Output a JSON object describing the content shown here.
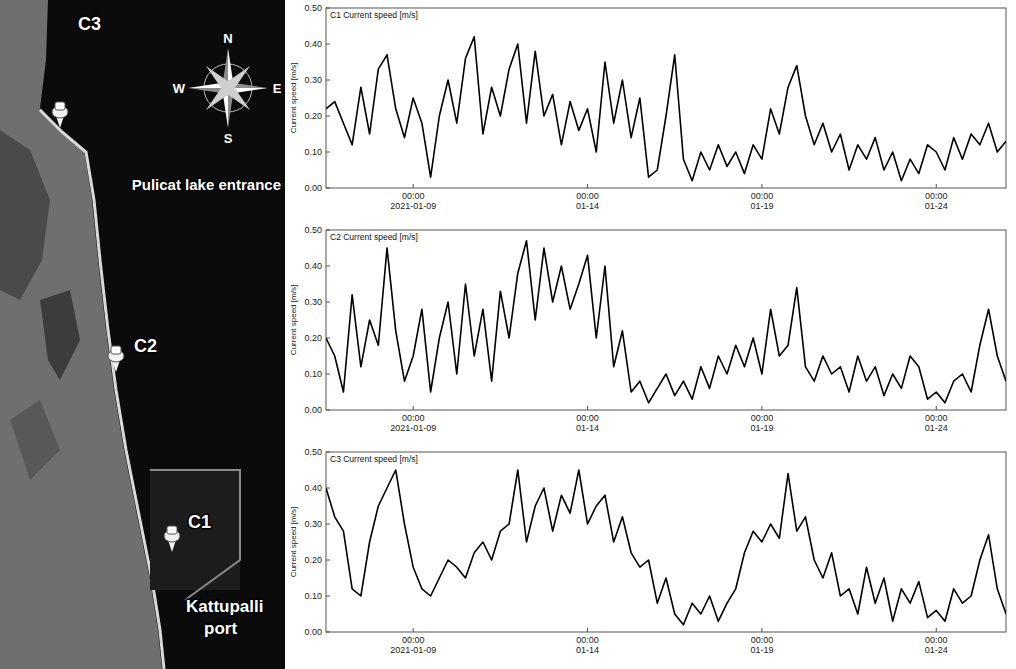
{
  "map": {
    "points": [
      {
        "label": "C3"
      },
      {
        "label": "C2"
      },
      {
        "label": "C1"
      }
    ],
    "places": [
      "Pulicat lake entrance",
      "Kattupalli port"
    ],
    "compass": [
      "N",
      "E",
      "S",
      "W"
    ]
  },
  "chart_data": [
    {
      "type": "line",
      "title": "C1 Current speed [m/s]",
      "ylabel": "Current speed [m/s]",
      "grid": false,
      "x": [
        "2021-01-06T12:00",
        "2021-01-06T18:00",
        "2021-01-07T00:00",
        "2021-01-07T06:00",
        "2021-01-07T12:00",
        "2021-01-07T18:00",
        "2021-01-08T00:00",
        "2021-01-08T06:00",
        "2021-01-08T12:00",
        "2021-01-08T18:00",
        "2021-01-09T00:00",
        "2021-01-09T06:00",
        "2021-01-09T12:00",
        "2021-01-09T18:00",
        "2021-01-10T00:00",
        "2021-01-10T06:00",
        "2021-01-10T12:00",
        "2021-01-10T18:00",
        "2021-01-11T00:00",
        "2021-01-11T06:00",
        "2021-01-11T12:00",
        "2021-01-11T18:00",
        "2021-01-12T00:00",
        "2021-01-12T06:00",
        "2021-01-12T12:00",
        "2021-01-12T18:00",
        "2021-01-13T00:00",
        "2021-01-13T06:00",
        "2021-01-13T12:00",
        "2021-01-13T18:00",
        "2021-01-14T00:00",
        "2021-01-14T06:00",
        "2021-01-14T12:00",
        "2021-01-14T18:00",
        "2021-01-15T00:00",
        "2021-01-15T06:00",
        "2021-01-15T12:00",
        "2021-01-15T18:00",
        "2021-01-16T00:00",
        "2021-01-16T06:00",
        "2021-01-16T12:00",
        "2021-01-16T18:00",
        "2021-01-17T00:00",
        "2021-01-17T06:00",
        "2021-01-17T12:00",
        "2021-01-17T18:00",
        "2021-01-18T00:00",
        "2021-01-18T06:00",
        "2021-01-18T12:00",
        "2021-01-18T18:00",
        "2021-01-19T00:00",
        "2021-01-19T06:00",
        "2021-01-19T12:00",
        "2021-01-19T18:00",
        "2021-01-20T00:00",
        "2021-01-20T06:00",
        "2021-01-20T12:00",
        "2021-01-20T18:00",
        "2021-01-21T00:00",
        "2021-01-21T06:00",
        "2021-01-21T12:00",
        "2021-01-21T18:00",
        "2021-01-22T00:00",
        "2021-01-22T06:00",
        "2021-01-22T12:00",
        "2021-01-22T18:00",
        "2021-01-23T00:00",
        "2021-01-23T06:00",
        "2021-01-23T12:00",
        "2021-01-23T18:00",
        "2021-01-24T00:00",
        "2021-01-24T06:00",
        "2021-01-24T12:00",
        "2021-01-24T18:00",
        "2021-01-25T00:00",
        "2021-01-25T06:00",
        "2021-01-25T12:00",
        "2021-01-25T18:00",
        "2021-01-26T00:00"
      ],
      "xlim": [
        "2021-01-06T12:00",
        "2021-01-26T00:00"
      ],
      "xticks": [
        {
          "value": "2021-01-09T00:00",
          "label": "00:00\n2021-01-09"
        },
        {
          "value": "2021-01-14T00:00",
          "label": "00:00\n01-14"
        },
        {
          "value": "2021-01-19T00:00",
          "label": "00:00\n01-19"
        },
        {
          "value": "2021-01-24T00:00",
          "label": "00:00\n01-24"
        }
      ],
      "ylim": [
        0,
        0.5
      ],
      "yticks": [
        {
          "value": 0,
          "label": "0.00"
        },
        {
          "value": 0.1,
          "label": "0.10"
        },
        {
          "value": 0.2,
          "label": "0.20"
        },
        {
          "value": 0.3,
          "label": "0.30"
        },
        {
          "value": 0.4,
          "label": "0.40"
        },
        {
          "value": 0.5,
          "label": "0.50"
        }
      ],
      "series": [
        {
          "color": "#000000",
          "values": [
            0.22,
            0.24,
            0.18,
            0.12,
            0.28,
            0.15,
            0.33,
            0.37,
            0.22,
            0.14,
            0.25,
            0.18,
            0.03,
            0.2,
            0.3,
            0.18,
            0.36,
            0.42,
            0.15,
            0.28,
            0.2,
            0.33,
            0.4,
            0.18,
            0.38,
            0.2,
            0.26,
            0.12,
            0.24,
            0.16,
            0.22,
            0.1,
            0.35,
            0.18,
            0.3,
            0.14,
            0.25,
            0.03,
            0.05,
            0.2,
            0.37,
            0.08,
            0.02,
            0.1,
            0.05,
            0.12,
            0.06,
            0.1,
            0.04,
            0.12,
            0.08,
            0.22,
            0.15,
            0.28,
            0.34,
            0.2,
            0.12,
            0.18,
            0.1,
            0.15,
            0.05,
            0.12,
            0.08,
            0.14,
            0.05,
            0.1,
            0.02,
            0.08,
            0.04,
            0.12,
            0.1,
            0.05,
            0.14,
            0.08,
            0.15,
            0.12,
            0.18,
            0.1,
            0.13
          ]
        }
      ]
    },
    {
      "type": "line",
      "title": "C2 Current speed [m/s]",
      "ylabel": "Current speed [m/s]",
      "grid": false,
      "x": [
        "2021-01-06T12:00",
        "2021-01-06T18:00",
        "2021-01-07T00:00",
        "2021-01-07T06:00",
        "2021-01-07T12:00",
        "2021-01-07T18:00",
        "2021-01-08T00:00",
        "2021-01-08T06:00",
        "2021-01-08T12:00",
        "2021-01-08T18:00",
        "2021-01-09T00:00",
        "2021-01-09T06:00",
        "2021-01-09T12:00",
        "2021-01-09T18:00",
        "2021-01-10T00:00",
        "2021-01-10T06:00",
        "2021-01-10T12:00",
        "2021-01-10T18:00",
        "2021-01-11T00:00",
        "2021-01-11T06:00",
        "2021-01-11T12:00",
        "2021-01-11T18:00",
        "2021-01-12T00:00",
        "2021-01-12T06:00",
        "2021-01-12T12:00",
        "2021-01-12T18:00",
        "2021-01-13T00:00",
        "2021-01-13T06:00",
        "2021-01-13T12:00",
        "2021-01-13T18:00",
        "2021-01-14T00:00",
        "2021-01-14T06:00",
        "2021-01-14T12:00",
        "2021-01-14T18:00",
        "2021-01-15T00:00",
        "2021-01-15T06:00",
        "2021-01-15T12:00",
        "2021-01-15T18:00",
        "2021-01-16T00:00",
        "2021-01-16T06:00",
        "2021-01-16T12:00",
        "2021-01-16T18:00",
        "2021-01-17T00:00",
        "2021-01-17T06:00",
        "2021-01-17T12:00",
        "2021-01-17T18:00",
        "2021-01-18T00:00",
        "2021-01-18T06:00",
        "2021-01-18T12:00",
        "2021-01-18T18:00",
        "2021-01-19T00:00",
        "2021-01-19T06:00",
        "2021-01-19T12:00",
        "2021-01-19T18:00",
        "2021-01-20T00:00",
        "2021-01-20T06:00",
        "2021-01-20T12:00",
        "2021-01-20T18:00",
        "2021-01-21T00:00",
        "2021-01-21T06:00",
        "2021-01-21T12:00",
        "2021-01-21T18:00",
        "2021-01-22T00:00",
        "2021-01-22T06:00",
        "2021-01-22T12:00",
        "2021-01-22T18:00",
        "2021-01-23T00:00",
        "2021-01-23T06:00",
        "2021-01-23T12:00",
        "2021-01-23T18:00",
        "2021-01-24T00:00",
        "2021-01-24T06:00",
        "2021-01-24T12:00",
        "2021-01-24T18:00",
        "2021-01-25T00:00",
        "2021-01-25T06:00",
        "2021-01-25T12:00",
        "2021-01-25T18:00",
        "2021-01-26T00:00"
      ],
      "xlim": [
        "2021-01-06T12:00",
        "2021-01-26T00:00"
      ],
      "xticks": [
        {
          "value": "2021-01-09T00:00",
          "label": "00:00\n2021-01-09"
        },
        {
          "value": "2021-01-14T00:00",
          "label": "00:00\n01-14"
        },
        {
          "value": "2021-01-19T00:00",
          "label": "00:00\n01-19"
        },
        {
          "value": "2021-01-24T00:00",
          "label": "00:00\n01-24"
        }
      ],
      "ylim": [
        0,
        0.5
      ],
      "yticks": [
        {
          "value": 0,
          "label": "0.00"
        },
        {
          "value": 0.1,
          "label": "0.10"
        },
        {
          "value": 0.2,
          "label": "0.20"
        },
        {
          "value": 0.3,
          "label": "0.30"
        },
        {
          "value": 0.4,
          "label": "0.40"
        },
        {
          "value": 0.5,
          "label": "0.50"
        }
      ],
      "series": [
        {
          "color": "#000000",
          "values": [
            0.2,
            0.15,
            0.05,
            0.32,
            0.12,
            0.25,
            0.18,
            0.45,
            0.22,
            0.08,
            0.15,
            0.28,
            0.05,
            0.2,
            0.3,
            0.1,
            0.35,
            0.15,
            0.28,
            0.08,
            0.33,
            0.2,
            0.38,
            0.47,
            0.25,
            0.45,
            0.3,
            0.4,
            0.28,
            0.35,
            0.43,
            0.2,
            0.4,
            0.12,
            0.22,
            0.05,
            0.08,
            0.02,
            0.06,
            0.1,
            0.04,
            0.08,
            0.03,
            0.12,
            0.06,
            0.15,
            0.1,
            0.18,
            0.12,
            0.2,
            0.1,
            0.28,
            0.15,
            0.18,
            0.34,
            0.12,
            0.08,
            0.15,
            0.1,
            0.12,
            0.05,
            0.15,
            0.08,
            0.12,
            0.04,
            0.1,
            0.06,
            0.15,
            0.12,
            0.03,
            0.05,
            0.02,
            0.08,
            0.1,
            0.05,
            0.18,
            0.28,
            0.15,
            0.08
          ]
        }
      ]
    },
    {
      "type": "line",
      "title": "C3 Current speed [m/s]",
      "ylabel": "Current speed [m/s]",
      "grid": false,
      "x": [
        "2021-01-06T12:00",
        "2021-01-06T18:00",
        "2021-01-07T00:00",
        "2021-01-07T06:00",
        "2021-01-07T12:00",
        "2021-01-07T18:00",
        "2021-01-08T00:00",
        "2021-01-08T06:00",
        "2021-01-08T12:00",
        "2021-01-08T18:00",
        "2021-01-09T00:00",
        "2021-01-09T06:00",
        "2021-01-09T12:00",
        "2021-01-09T18:00",
        "2021-01-10T00:00",
        "2021-01-10T06:00",
        "2021-01-10T12:00",
        "2021-01-10T18:00",
        "2021-01-11T00:00",
        "2021-01-11T06:00",
        "2021-01-11T12:00",
        "2021-01-11T18:00",
        "2021-01-12T00:00",
        "2021-01-12T06:00",
        "2021-01-12T12:00",
        "2021-01-12T18:00",
        "2021-01-13T00:00",
        "2021-01-13T06:00",
        "2021-01-13T12:00",
        "2021-01-13T18:00",
        "2021-01-14T00:00",
        "2021-01-14T06:00",
        "2021-01-14T12:00",
        "2021-01-14T18:00",
        "2021-01-15T00:00",
        "2021-01-15T06:00",
        "2021-01-15T12:00",
        "2021-01-15T18:00",
        "2021-01-16T00:00",
        "2021-01-16T06:00",
        "2021-01-16T12:00",
        "2021-01-16T18:00",
        "2021-01-17T00:00",
        "2021-01-17T06:00",
        "2021-01-17T12:00",
        "2021-01-17T18:00",
        "2021-01-18T00:00",
        "2021-01-18T06:00",
        "2021-01-18T12:00",
        "2021-01-18T18:00",
        "2021-01-19T00:00",
        "2021-01-19T06:00",
        "2021-01-19T12:00",
        "2021-01-19T18:00",
        "2021-01-20T00:00",
        "2021-01-20T06:00",
        "2021-01-20T12:00",
        "2021-01-20T18:00",
        "2021-01-21T00:00",
        "2021-01-21T06:00",
        "2021-01-21T12:00",
        "2021-01-21T18:00",
        "2021-01-22T00:00",
        "2021-01-22T06:00",
        "2021-01-22T12:00",
        "2021-01-22T18:00",
        "2021-01-23T00:00",
        "2021-01-23T06:00",
        "2021-01-23T12:00",
        "2021-01-23T18:00",
        "2021-01-24T00:00",
        "2021-01-24T06:00",
        "2021-01-24T12:00",
        "2021-01-24T18:00",
        "2021-01-25T00:00",
        "2021-01-25T06:00",
        "2021-01-25T12:00",
        "2021-01-25T18:00",
        "2021-01-26T00:00"
      ],
      "xlim": [
        "2021-01-06T12:00",
        "2021-01-26T00:00"
      ],
      "xticks": [
        {
          "value": "2021-01-09T00:00",
          "label": "00:00\n2021-01-09"
        },
        {
          "value": "2021-01-14T00:00",
          "label": "00:00\n01-14"
        },
        {
          "value": "2021-01-19T00:00",
          "label": "00:00\n01-19"
        },
        {
          "value": "2021-01-24T00:00",
          "label": "00:00\n01-24"
        }
      ],
      "ylim": [
        0,
        0.5
      ],
      "yticks": [
        {
          "value": 0,
          "label": "0.00"
        },
        {
          "value": 0.1,
          "label": "0.10"
        },
        {
          "value": 0.2,
          "label": "0.20"
        },
        {
          "value": 0.3,
          "label": "0.30"
        },
        {
          "value": 0.4,
          "label": "0.40"
        },
        {
          "value": 0.5,
          "label": "0.50"
        }
      ],
      "series": [
        {
          "color": "#000000",
          "values": [
            0.4,
            0.32,
            0.28,
            0.12,
            0.1,
            0.25,
            0.35,
            0.4,
            0.45,
            0.3,
            0.18,
            0.12,
            0.1,
            0.15,
            0.2,
            0.18,
            0.15,
            0.22,
            0.25,
            0.2,
            0.28,
            0.3,
            0.45,
            0.25,
            0.35,
            0.4,
            0.28,
            0.38,
            0.33,
            0.45,
            0.3,
            0.35,
            0.38,
            0.25,
            0.32,
            0.22,
            0.18,
            0.2,
            0.08,
            0.15,
            0.05,
            0.02,
            0.08,
            0.05,
            0.1,
            0.03,
            0.08,
            0.12,
            0.22,
            0.28,
            0.25,
            0.3,
            0.26,
            0.44,
            0.28,
            0.32,
            0.2,
            0.15,
            0.22,
            0.1,
            0.12,
            0.05,
            0.18,
            0.08,
            0.15,
            0.03,
            0.12,
            0.08,
            0.14,
            0.04,
            0.06,
            0.03,
            0.12,
            0.08,
            0.1,
            0.2,
            0.27,
            0.12,
            0.05
          ]
        }
      ]
    }
  ]
}
